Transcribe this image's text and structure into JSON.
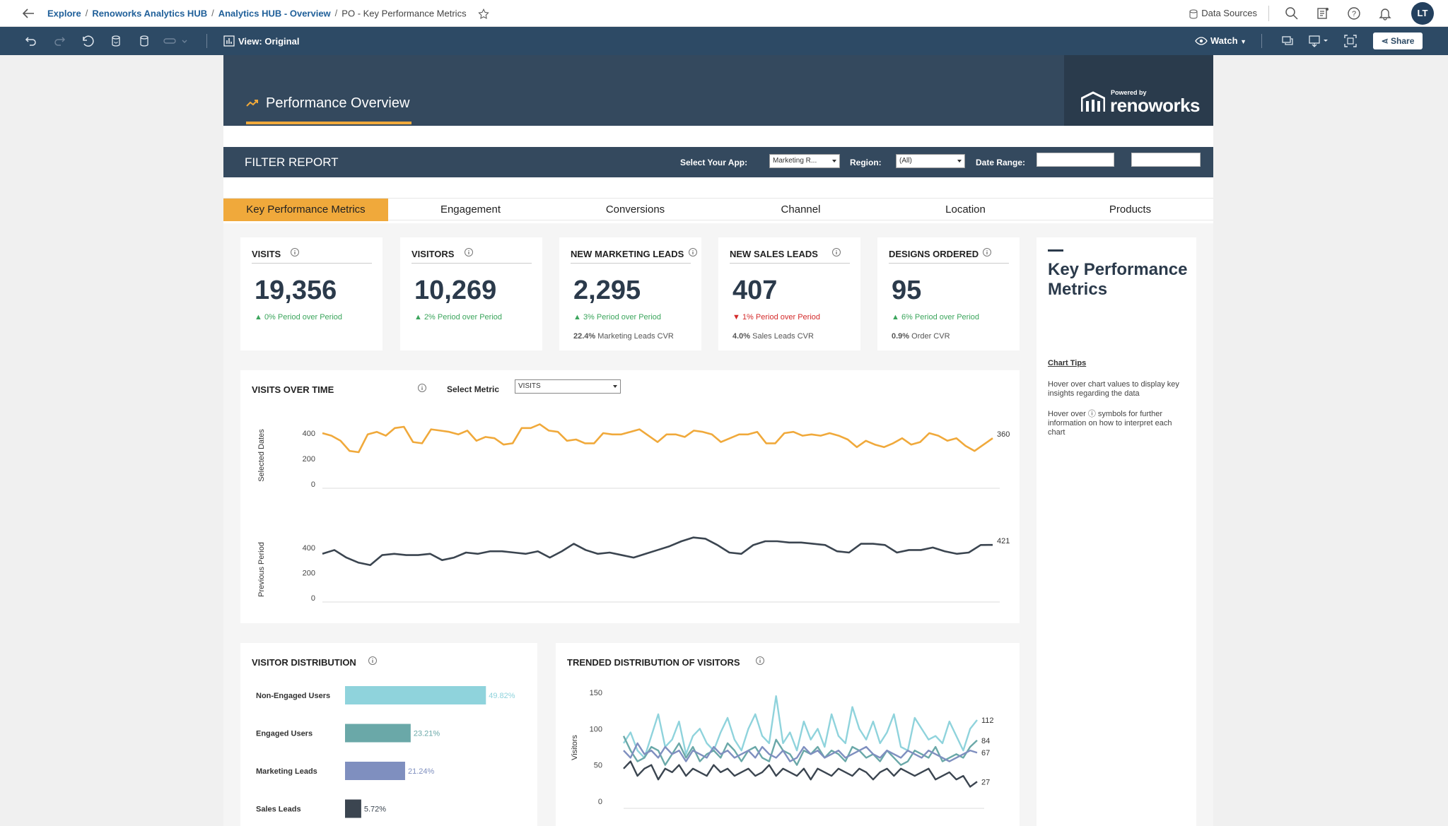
{
  "breadcrumb": {
    "items": [
      "Explore",
      "Renoworks Analytics HUB",
      "Analytics HUB - Overview"
    ],
    "current": "PO - Key Performance Metrics"
  },
  "topbar": {
    "data_sources_label": "Data Sources",
    "avatar_initials": "LT"
  },
  "toolbar": {
    "view_label": "View: Original",
    "watch_label": "Watch",
    "share_label": "Share"
  },
  "banner": {
    "title": "Performance Overview",
    "logo_small": "Powered by",
    "logo_main": "renoworks"
  },
  "filter": {
    "title": "FILTER REPORT",
    "app_label": "Select Your App:",
    "app_value": "Marketing R...",
    "region_label": "Region:",
    "region_value": "(All)",
    "date_label": "Date Range:"
  },
  "tabs": [
    {
      "label": "Key Performance Metrics",
      "active": true
    },
    {
      "label": "Engagement",
      "active": false
    },
    {
      "label": "Conversions",
      "active": false
    },
    {
      "label": "Channel",
      "active": false
    },
    {
      "label": "Location",
      "active": false
    },
    {
      "label": "Products",
      "active": false
    }
  ],
  "kpis": [
    {
      "title": "VISITS",
      "value": "19,356",
      "trend": "▲ 0% Period over Period",
      "dir": "up",
      "sub_bold": "",
      "sub": ""
    },
    {
      "title": "VISITORS",
      "value": "10,269",
      "trend": "▲ 2% Period over Period",
      "dir": "up",
      "sub_bold": "",
      "sub": ""
    },
    {
      "title": "NEW MARKETING LEADS",
      "value": "2,295",
      "trend": "▲ 3% Period over Period",
      "dir": "up",
      "sub_bold": "22.4%",
      "sub": " Marketing Leads CVR"
    },
    {
      "title": "NEW SALES LEADS",
      "value": "407",
      "trend": "▼ 1% Period over Period",
      "dir": "down",
      "sub_bold": "4.0%",
      "sub": " Sales Leads CVR"
    },
    {
      "title": "DESIGNS ORDERED",
      "value": "95",
      "trend": "▲ 6% Period over Period",
      "dir": "up",
      "sub_bold": "0.9%",
      "sub": " Order CVR"
    }
  ],
  "visits_over_time": {
    "title": "VISITS OVER TIME",
    "select_label": "Select Metric",
    "select_value": "VISITS"
  },
  "visitor_distribution": {
    "title": "VISITOR DISTRIBUTION"
  },
  "trended_distribution": {
    "title": "TRENDED DISTRIBUTION OF VISITORS"
  },
  "side_panel": {
    "title": "Key Performance Metrics",
    "tips_title": "Chart Tips",
    "tip1": "Hover over chart values to display key insights regarding the data",
    "tip2": "Hover over ⓘ symbols for further information on how to interpret each chart"
  },
  "colors": {
    "accent": "#f0a93b",
    "navy": "#34495e",
    "up": "#3ba55c",
    "down": "#d42a2a"
  },
  "chart_data": [
    {
      "type": "line",
      "name": "visits_over_time_selected",
      "ylabel": "Selected Dates",
      "yticks": [
        0,
        200,
        400
      ],
      "ylim": [
        0,
        450
      ],
      "color": "#f0a93b",
      "values": [
        400,
        380,
        340,
        260,
        250,
        390,
        410,
        380,
        440,
        450,
        330,
        320,
        430,
        420,
        410,
        390,
        420,
        340,
        370,
        360,
        310,
        320,
        440,
        440,
        470,
        420,
        410,
        340,
        350,
        320,
        320,
        400,
        390,
        390,
        410,
        430,
        380,
        330,
        390,
        390,
        370,
        420,
        410,
        390,
        330,
        360,
        390,
        390,
        410,
        320,
        320,
        400,
        410,
        380,
        390,
        380,
        400,
        380,
        350,
        290,
        340,
        310,
        290,
        320,
        360,
        310,
        330,
        400,
        380,
        340,
        360,
        300,
        260,
        310,
        360
      ],
      "end_label": "360"
    },
    {
      "type": "line",
      "name": "visits_over_time_previous",
      "ylabel": "Previous Period",
      "yticks": [
        0,
        200,
        400
      ],
      "ylim": [
        0,
        450
      ],
      "color": "#3b4550",
      "values": [
        350,
        380,
        320,
        280,
        260,
        340,
        350,
        340,
        340,
        350,
        300,
        320,
        360,
        350,
        370,
        370,
        360,
        350,
        370,
        320,
        370,
        430,
        380,
        350,
        360,
        340,
        320,
        350,
        380,
        410,
        450,
        480,
        470,
        420,
        360,
        350,
        420,
        450,
        450,
        440,
        440,
        430,
        420,
        370,
        360,
        430,
        430,
        420,
        360,
        380,
        380,
        400,
        370,
        350,
        360,
        420,
        421
      ],
      "end_label": "421"
    },
    {
      "type": "bar",
      "name": "visitor_distribution",
      "orientation": "horizontal",
      "categories": [
        "Non-Engaged Users",
        "Engaged Users",
        "Marketing Leads",
        "Sales Leads"
      ],
      "values": [
        49.82,
        23.21,
        21.24,
        5.72
      ],
      "labels": [
        "49.82%",
        "23.21%",
        "21.24%",
        "5.72%"
      ],
      "colors": [
        "#8fd3dc",
        "#6aa8a8",
        "#7f8fbf",
        "#3b4550"
      ]
    },
    {
      "type": "line",
      "name": "trended_distribution",
      "ylabel": "Visitors",
      "yticks": [
        0,
        50,
        100,
        150
      ],
      "ylim": [
        0,
        150
      ],
      "series": [
        {
          "color": "#8fd3dc",
          "end_label": "112",
          "values": [
            80,
            95,
            70,
            60,
            90,
            120,
            75,
            85,
            110,
            65,
            90,
            100,
            80,
            70,
            95,
            115,
            85,
            70,
            100,
            120,
            90,
            80,
            145,
            80,
            95,
            70,
            110,
            85,
            100,
            75,
            120,
            90,
            80,
            130,
            100,
            85,
            110,
            80,
            95,
            120,
            75,
            70,
            115,
            100,
            85,
            90,
            80,
            110,
            90,
            70,
            100,
            112
          ]
        },
        {
          "color": "#6aa8a8",
          "end_label": "84",
          "values": [
            90,
            70,
            55,
            60,
            75,
            70,
            50,
            65,
            80,
            60,
            75,
            55,
            65,
            70,
            60,
            80,
            70,
            55,
            70,
            75,
            60,
            55,
            85,
            70,
            65,
            50,
            70,
            65,
            75,
            60,
            70,
            65,
            55,
            75,
            70,
            60,
            65,
            55,
            70,
            60,
            50,
            55,
            70,
            65,
            60,
            75,
            55,
            60,
            65,
            60,
            75,
            84
          ]
        },
        {
          "color": "#7f8fbf",
          "end_label": "67",
          "values": [
            70,
            60,
            80,
            65,
            70,
            60,
            75,
            65,
            70,
            55,
            70,
            65,
            60,
            75,
            65,
            70,
            60,
            65,
            70,
            60,
            75,
            65,
            60,
            70,
            55,
            60,
            75,
            65,
            70,
            60,
            65,
            70,
            60,
            65,
            70,
            75,
            65,
            60,
            70,
            65,
            60,
            70,
            65,
            60,
            70,
            65,
            60,
            55,
            60,
            65,
            70,
            67
          ]
        },
        {
          "color": "#3b4550",
          "end_label": "27",
          "values": [
            45,
            55,
            35,
            45,
            50,
            30,
            45,
            40,
            50,
            35,
            45,
            40,
            35,
            50,
            40,
            45,
            35,
            40,
            45,
            35,
            40,
            50,
            35,
            45,
            40,
            35,
            45,
            30,
            45,
            40,
            35,
            45,
            40,
            35,
            45,
            40,
            30,
            40,
            45,
            35,
            45,
            40,
            35,
            40,
            45,
            30,
            35,
            40,
            30,
            35,
            20,
            27
          ]
        }
      ]
    }
  ]
}
